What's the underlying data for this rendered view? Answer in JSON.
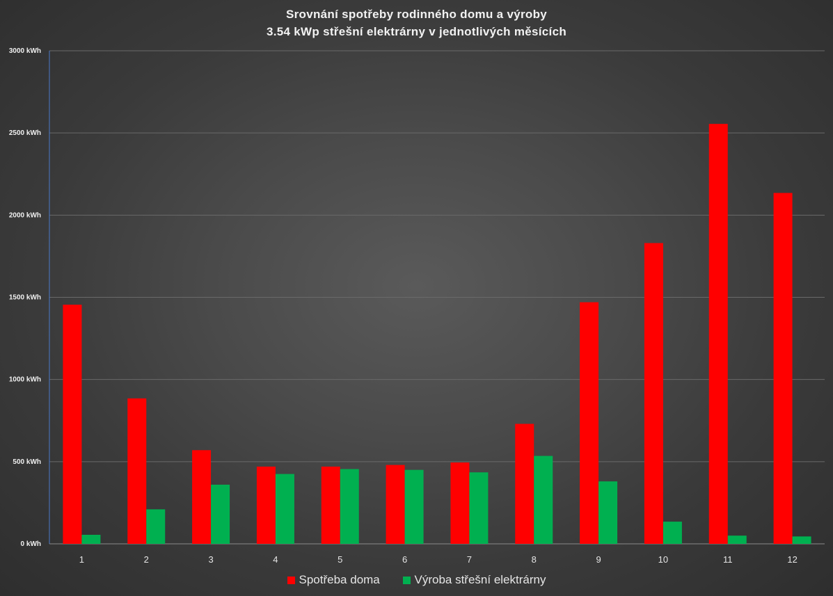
{
  "chart_data": {
    "type": "bar",
    "title": "Srovnání spotřeby rodinného domu a výroby",
    "subtitle": "3.54 kWp střešní elektrárny v jednotlivých měsících",
    "categories": [
      "1",
      "2",
      "3",
      "4",
      "5",
      "6",
      "7",
      "8",
      "9",
      "10",
      "11",
      "12"
    ],
    "ylim": [
      0,
      3000
    ],
    "yticks": [
      "0 kWh",
      "500 kWh",
      "1000 kWh",
      "1500 kWh",
      "2000 kWh",
      "2500 kWh",
      "3000 kWh"
    ],
    "grid": true,
    "legend_position": "bottom",
    "series": [
      {
        "name": "Spotřeba doma",
        "color": "#ff0000",
        "values": [
          1455,
          885,
          570,
          470,
          470,
          480,
          495,
          730,
          1470,
          1830,
          2555,
          2135
        ]
      },
      {
        "name": "Výroba střešní elektrárny",
        "color": "#00b050",
        "values": [
          55,
          210,
          360,
          425,
          455,
          450,
          435,
          535,
          380,
          135,
          50,
          45
        ]
      }
    ]
  }
}
